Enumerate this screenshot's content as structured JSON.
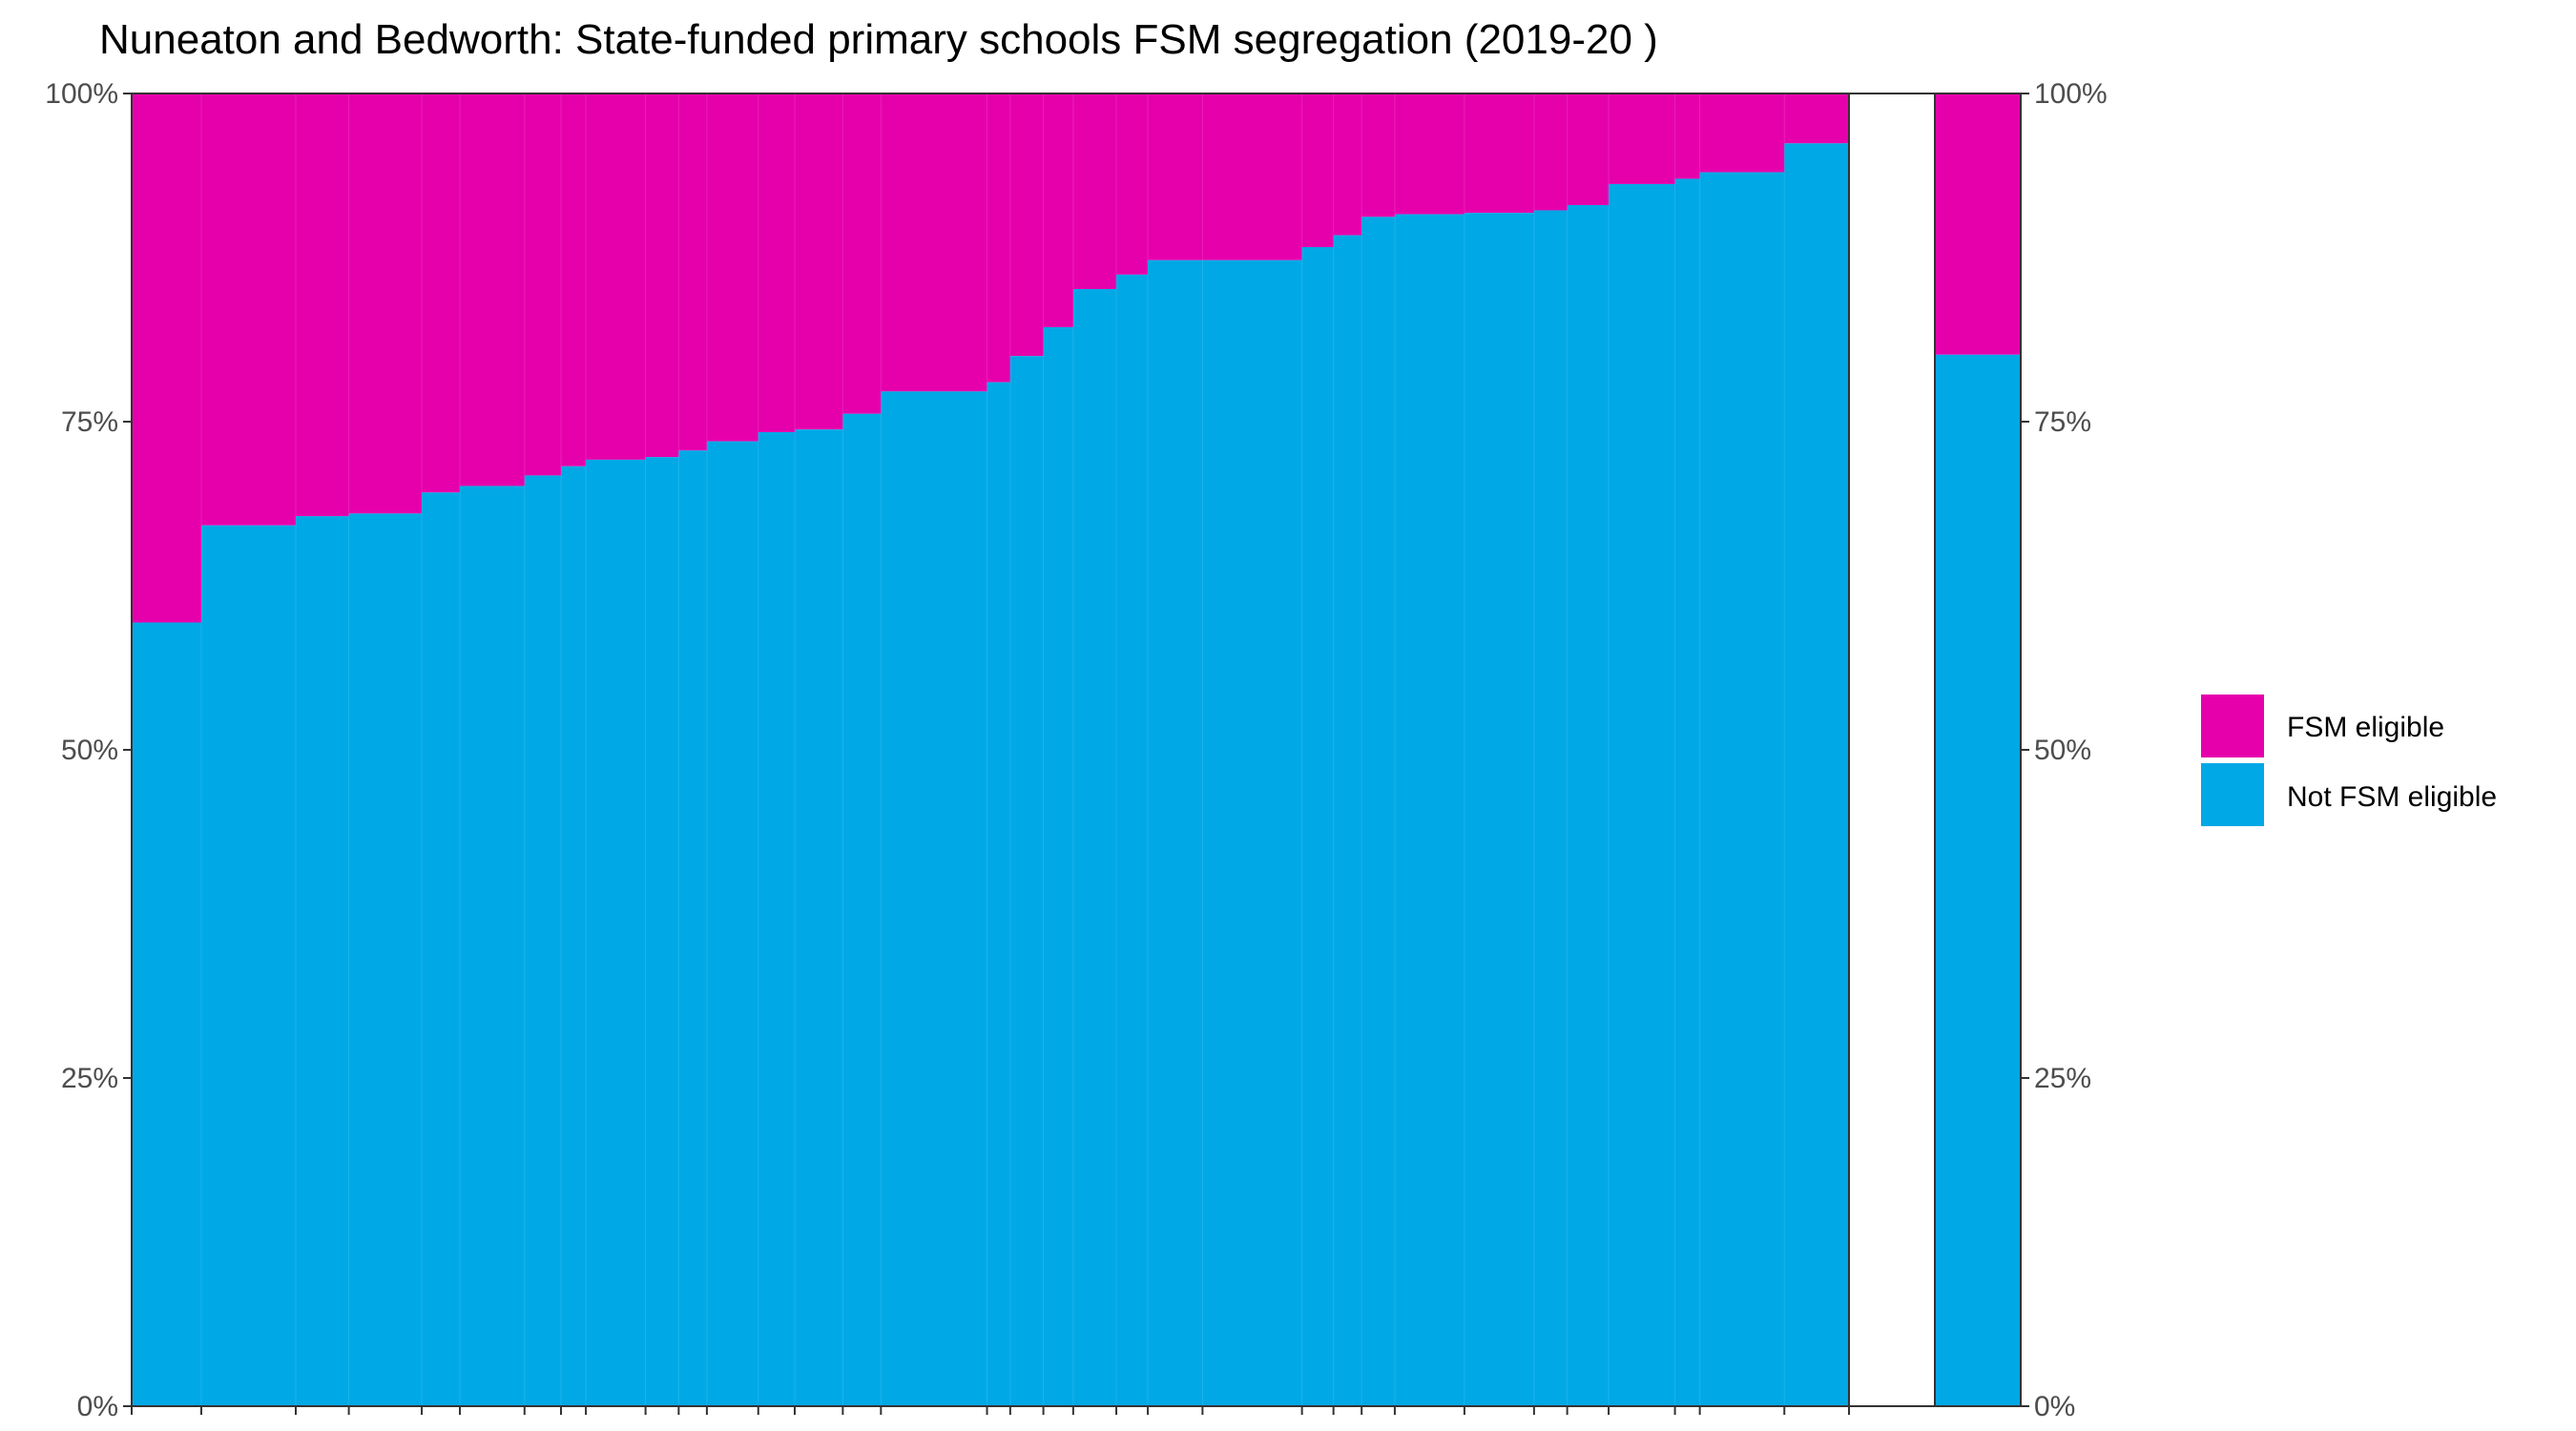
{
  "chart_data": {
    "type": "bar",
    "stacked": true,
    "variable_width": true,
    "title": "Nuneaton and Bedworth: State-funded primary schools FSM segregation (2019-20 )",
    "xlabel": "",
    "ylabel": "",
    "ylim": [
      0,
      100
    ],
    "y_ticks": [
      "0%",
      "25%",
      "50%",
      "75%",
      "100%"
    ],
    "y_tick_values": [
      0,
      25,
      50,
      75,
      100
    ],
    "secondary_y_axis": true,
    "grid": false,
    "legend_position": "right",
    "colors": {
      "fsm": "#e600ac",
      "not_fsm": "#00a8e6",
      "frame": "#333333"
    },
    "series": [
      {
        "name": "FSM eligible",
        "color": "#e600ac"
      },
      {
        "name": "Not FSM eligible",
        "color": "#00a8e6"
      }
    ],
    "schools": [
      {
        "width": 42,
        "not_fsm_pct": 59.7
      },
      {
        "width": 57,
        "not_fsm_pct": 67.1
      },
      {
        "width": 32,
        "not_fsm_pct": 67.8
      },
      {
        "width": 44,
        "not_fsm_pct": 68.0
      },
      {
        "width": 23,
        "not_fsm_pct": 69.6
      },
      {
        "width": 39,
        "not_fsm_pct": 70.1
      },
      {
        "width": 22,
        "not_fsm_pct": 70.9
      },
      {
        "width": 15,
        "not_fsm_pct": 71.6
      },
      {
        "width": 36,
        "not_fsm_pct": 72.1
      },
      {
        "width": 20,
        "not_fsm_pct": 72.3
      },
      {
        "width": 17,
        "not_fsm_pct": 72.8
      },
      {
        "width": 31,
        "not_fsm_pct": 73.5
      },
      {
        "width": 22,
        "not_fsm_pct": 74.2
      },
      {
        "width": 29,
        "not_fsm_pct": 74.4
      },
      {
        "width": 23,
        "not_fsm_pct": 75.6
      },
      {
        "width": 64,
        "not_fsm_pct": 77.3
      },
      {
        "width": 14,
        "not_fsm_pct": 78.0
      },
      {
        "width": 20,
        "not_fsm_pct": 80.0
      },
      {
        "width": 18,
        "not_fsm_pct": 82.2
      },
      {
        "width": 26,
        "not_fsm_pct": 85.1
      },
      {
        "width": 19,
        "not_fsm_pct": 86.2
      },
      {
        "width": 33,
        "not_fsm_pct": 87.3
      },
      {
        "width": 60,
        "not_fsm_pct": 87.3
      },
      {
        "width": 19,
        "not_fsm_pct": 88.3
      },
      {
        "width": 17,
        "not_fsm_pct": 89.2
      },
      {
        "width": 20,
        "not_fsm_pct": 90.6
      },
      {
        "width": 42,
        "not_fsm_pct": 90.8
      },
      {
        "width": 42,
        "not_fsm_pct": 90.9
      },
      {
        "width": 20,
        "not_fsm_pct": 91.1
      },
      {
        "width": 25,
        "not_fsm_pct": 91.5
      },
      {
        "width": 40,
        "not_fsm_pct": 93.1
      },
      {
        "width": 15,
        "not_fsm_pct": 93.5
      },
      {
        "width": 51,
        "not_fsm_pct": 94.0
      },
      {
        "width": 39,
        "not_fsm_pct": 96.2
      }
    ],
    "overall": {
      "not_fsm_pct": 80.1
    }
  },
  "legend": {
    "items": [
      {
        "label": "FSM eligible",
        "color": "#e600ac"
      },
      {
        "label": "Not FSM eligible",
        "color": "#00a8e6"
      }
    ]
  }
}
